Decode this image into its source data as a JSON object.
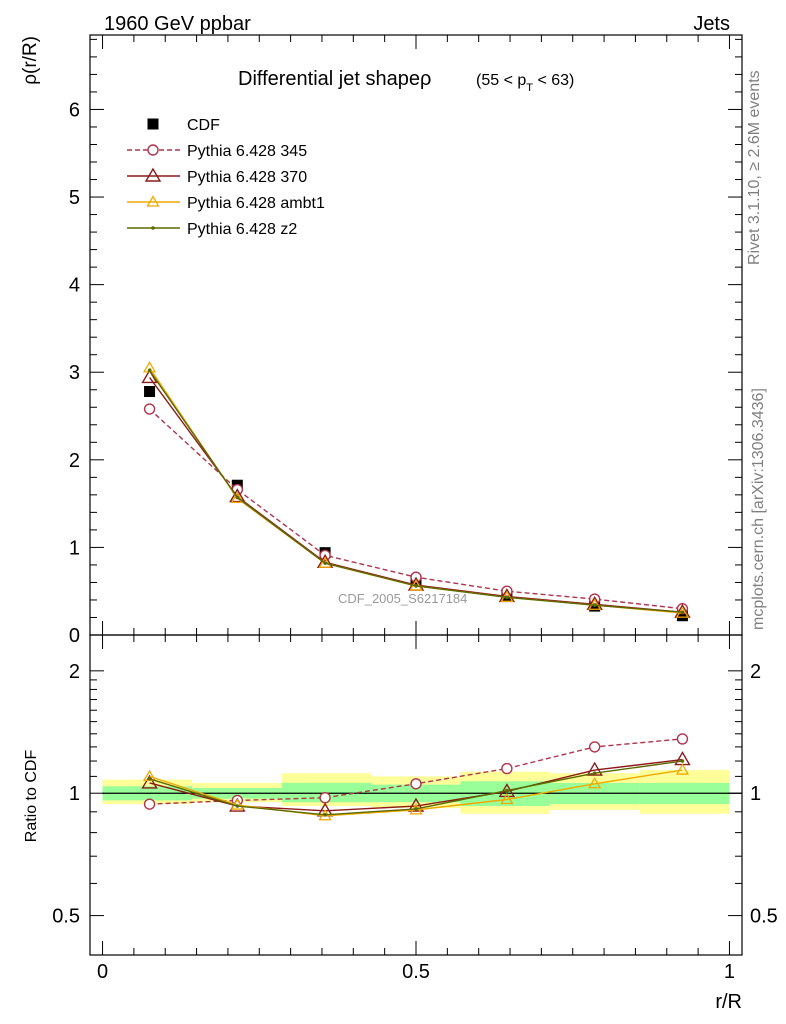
{
  "header": {
    "left": "1960 GeV ppbar",
    "right": "Jets"
  },
  "side_labels": {
    "rivet": "Rivet 3.1.10, ≥ 2.6M events",
    "mcplots": "mcplots.cern.ch [arXiv:1306.3436]"
  },
  "watermark": "CDF_2005_S6217184",
  "colors": {
    "cdf": "#000000",
    "pythia_345": "#b2334d",
    "pythia_370": "#8b1a1a",
    "pythia_ambt1": "#f0a800",
    "pythia_z2": "#5b6b00",
    "band_inner": "#99ff99",
    "band_outer": "#ffff99"
  },
  "chart_data": [
    {
      "type": "line",
      "title": "Differential jet shapeρ",
      "title_suffix": "(55 < p",
      "title_sub": "T",
      "title_end": " < 63)",
      "xlabel": "",
      "ylabel": "ρ(r/R)",
      "xlim": [
        -0.02,
        1.02
      ],
      "ylim": [
        0,
        6.85
      ],
      "yticks": [
        0,
        1,
        2,
        3,
        4,
        5,
        6
      ],
      "ytick_labels": [
        "0",
        "1",
        "2",
        "3",
        "4",
        "5",
        "6"
      ],
      "legend_position": "top-left",
      "x": [
        0.075,
        0.215,
        0.355,
        0.5,
        0.645,
        0.785,
        0.925
      ],
      "series": [
        {
          "name": "CDF",
          "key": "cdf",
          "marker": "square",
          "values": [
            2.78,
            1.71,
            0.94,
            0.62,
            0.44,
            0.33,
            0.22
          ]
        },
        {
          "name": "Pythia 6.428 345",
          "key": "pythia_345",
          "marker": "circle",
          "dashed": true,
          "values": [
            2.58,
            1.66,
            0.91,
            0.66,
            0.5,
            0.41,
            0.3
          ]
        },
        {
          "name": "Pythia 6.428 370",
          "key": "pythia_370",
          "marker": "triangle",
          "values": [
            2.94,
            1.58,
            0.83,
            0.57,
            0.44,
            0.35,
            0.26
          ]
        },
        {
          "name": "Pythia 6.428 ambt1",
          "key": "pythia_ambt1",
          "marker": "triangle-small",
          "values": [
            3.05,
            1.56,
            0.82,
            0.56,
            0.43,
            0.34,
            0.25
          ]
        },
        {
          "name": "Pythia 6.428 z2",
          "key": "pythia_z2",
          "marker": "dot",
          "values": [
            3.02,
            1.57,
            0.82,
            0.56,
            0.43,
            0.34,
            0.26
          ]
        }
      ]
    },
    {
      "type": "line",
      "title": "",
      "xlabel": "r/R",
      "ylabel": "Ratio to CDF",
      "log_y": true,
      "xlim": [
        -0.02,
        1.02
      ],
      "ylim": [
        0.4,
        2.45
      ],
      "yticks": [
        0.5,
        1,
        2
      ],
      "ytick_labels": [
        "0.5",
        "1",
        "2"
      ],
      "xticks": [
        0,
        0.5,
        1
      ],
      "xtick_labels": [
        "0",
        "0.5",
        "1"
      ],
      "x": [
        0.075,
        0.215,
        0.355,
        0.5,
        0.645,
        0.785,
        0.925
      ],
      "bands": {
        "edges": [
          0.0,
          0.143,
          0.286,
          0.429,
          0.571,
          0.714,
          0.857,
          1.0
        ],
        "inner": [
          [
            0.96,
            1.04
          ],
          [
            0.97,
            1.03
          ],
          [
            0.95,
            1.06
          ],
          [
            0.95,
            1.05
          ],
          [
            0.93,
            1.07
          ],
          [
            0.94,
            1.06
          ],
          [
            0.94,
            1.06
          ]
        ],
        "outer": [
          [
            0.94,
            1.08
          ],
          [
            0.95,
            1.06
          ],
          [
            0.93,
            1.12
          ],
          [
            0.92,
            1.1
          ],
          [
            0.89,
            1.13
          ],
          [
            0.91,
            1.12
          ],
          [
            0.89,
            1.14
          ]
        ]
      },
      "series": [
        {
          "name": "Pythia 6.428 345",
          "key": "pythia_345",
          "marker": "circle",
          "dashed": true,
          "values": [
            0.94,
            0.96,
            0.975,
            1.055,
            1.15,
            1.3,
            1.36
          ]
        },
        {
          "name": "Pythia 6.428 370",
          "key": "pythia_370",
          "marker": "triangle",
          "values": [
            1.06,
            0.93,
            0.905,
            0.93,
            1.01,
            1.14,
            1.21
          ]
        },
        {
          "name": "Pythia 6.428 ambt1",
          "key": "pythia_ambt1",
          "marker": "triangle-small",
          "values": [
            1.1,
            0.935,
            0.88,
            0.91,
            0.965,
            1.055,
            1.14
          ]
        },
        {
          "name": "Pythia 6.428 z2",
          "key": "pythia_z2",
          "marker": "dot",
          "values": [
            1.085,
            0.93,
            0.885,
            0.915,
            1.015,
            1.12,
            1.2
          ]
        }
      ]
    }
  ]
}
